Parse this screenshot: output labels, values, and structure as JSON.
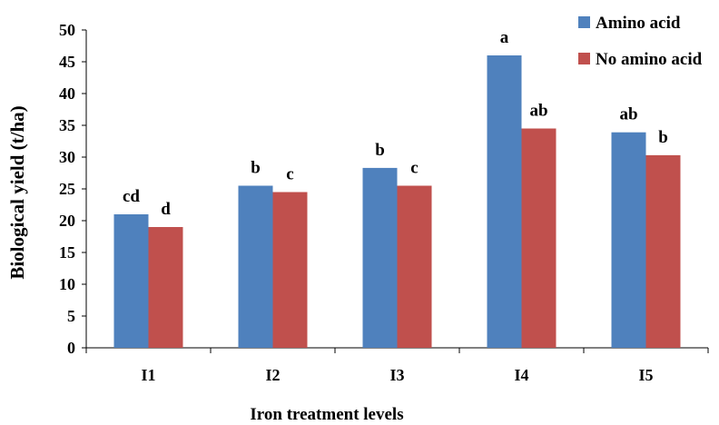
{
  "chart_data": {
    "type": "bar",
    "title": "",
    "xlabel": "Iron treatment levels",
    "ylabel": "Biological yield (t/ha)",
    "categories": [
      "I1",
      "I2",
      "I3",
      "I4",
      "I5"
    ],
    "ylim": [
      0,
      50
    ],
    "yticks": [
      0,
      5,
      10,
      15,
      20,
      25,
      30,
      35,
      40,
      45,
      50
    ],
    "grid": false,
    "legend_position": "top-right",
    "series": [
      {
        "name": "Amino acid",
        "color": "#4f81bd",
        "values": [
          21,
          25.5,
          28.3,
          46,
          33.9
        ],
        "labels": [
          "cd",
          "b",
          "b",
          "a",
          "ab"
        ]
      },
      {
        "name": "No amino acid",
        "color": "#c0504d",
        "values": [
          19,
          24.5,
          25.5,
          34.5,
          30.3
        ],
        "labels": [
          "d",
          "c",
          "c",
          "ab",
          "b"
        ]
      }
    ]
  }
}
